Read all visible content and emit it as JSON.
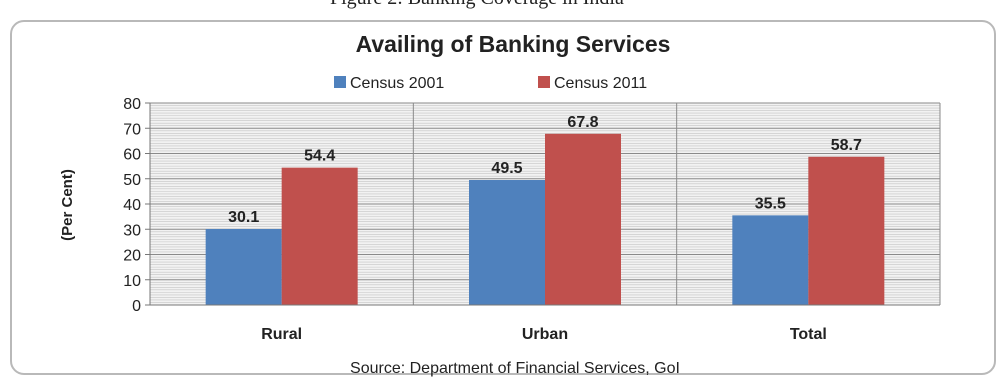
{
  "page": {
    "top_caption": "Figure 2: Banking Coverage in India"
  },
  "chart_data": {
    "type": "bar",
    "title": "Availing of Banking Services",
    "ylabel": "(Per Cent)",
    "xlabel": "",
    "categories": [
      "Rural",
      "Urban",
      "Total"
    ],
    "series": [
      {
        "name": "Census 2001",
        "values": [
          30.1,
          49.5,
          35.5
        ]
      },
      {
        "name": "Census 2011",
        "values": [
          54.4,
          67.8,
          58.7
        ]
      }
    ],
    "ylim": [
      0,
      80
    ],
    "yticks": [
      0,
      10,
      20,
      30,
      40,
      50,
      60,
      70,
      80
    ],
    "grid": true,
    "legend_position": "top",
    "source": "Source: Department of Financial Services, GoI",
    "colors": {
      "Census 2001": "#4f81bd",
      "Census 2011": "#c0504d",
      "grid": "#9a9a9a",
      "plot_bg": "#f2f2f2"
    }
  }
}
